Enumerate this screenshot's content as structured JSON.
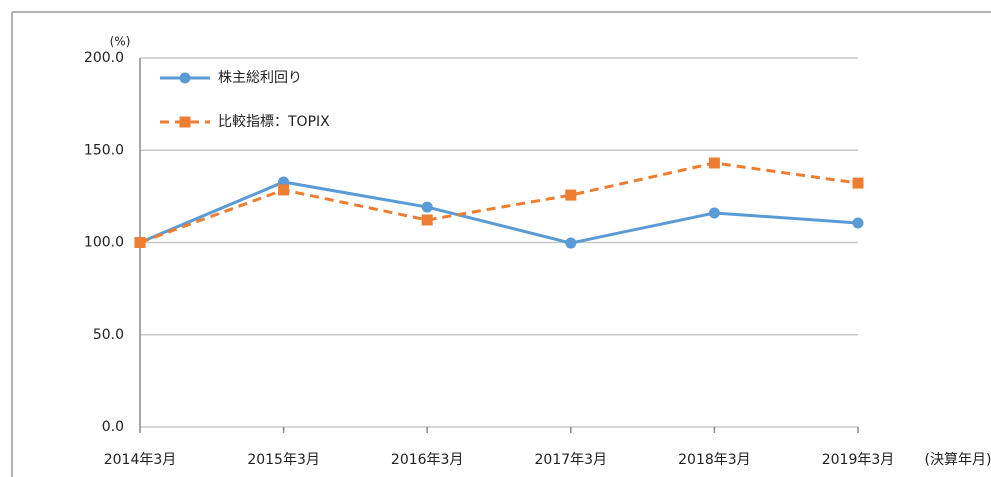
{
  "chart_data": {
    "type": "line",
    "y_unit": "(%)",
    "x_label": "(決算年月)",
    "categories": [
      "2014年3月",
      "2015年3月",
      "2016年3月",
      "2017年3月",
      "2018年3月",
      "2019年3月"
    ],
    "series": [
      {
        "name": "株主総利回り",
        "color": "#5b9bd5",
        "marker": "circle",
        "dashed": false,
        "values": [
          100,
          132.8,
          119.2,
          99.7,
          116,
          110.6
        ]
      },
      {
        "name": "比較指標：TOPIX",
        "color": "#ed7d31",
        "marker": "square",
        "dashed": true,
        "values": [
          100,
          128.5,
          112.2,
          125.7,
          143.1,
          132.2
        ]
      }
    ],
    "ylim": [
      0,
      200
    ],
    "yticks": [
      {
        "value": 0,
        "label": "0.0"
      },
      {
        "value": 50,
        "label": "50.0"
      },
      {
        "value": 100,
        "label": "100.0"
      },
      {
        "value": 150,
        "label": "150.0"
      },
      {
        "value": 200,
        "label": "200.0"
      }
    ],
    "grid": true,
    "legend": "upper left"
  }
}
